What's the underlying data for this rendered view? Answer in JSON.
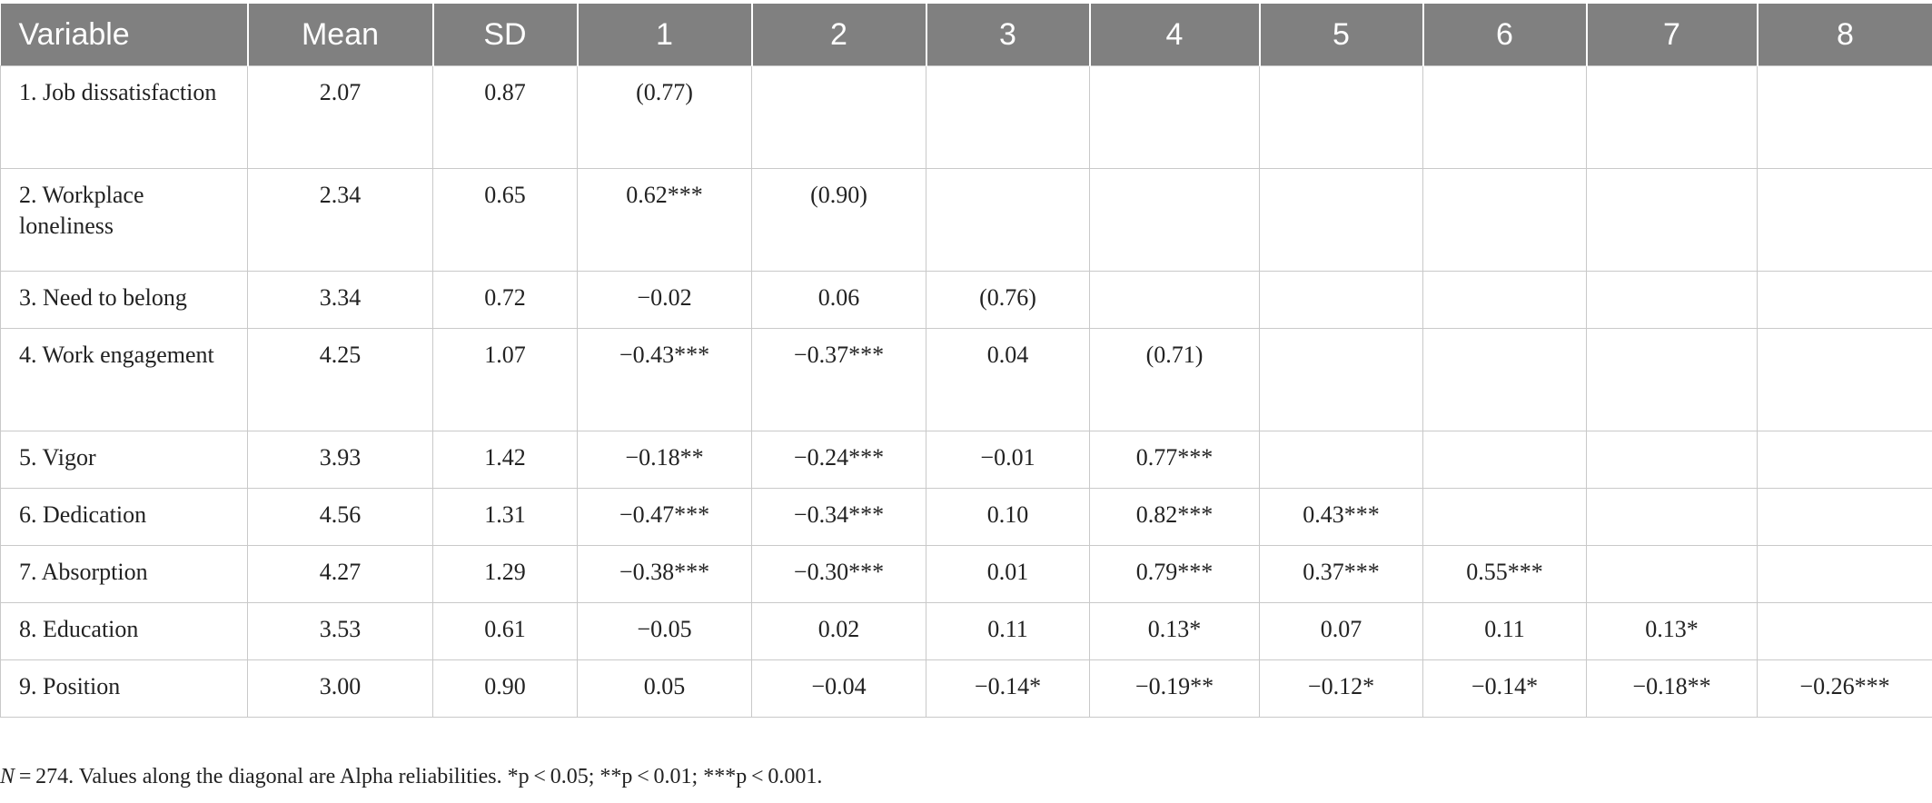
{
  "table": {
    "headers": [
      "Variable",
      "Mean",
      "SD",
      "1",
      "2",
      "3",
      "4",
      "5",
      "6",
      "7",
      "8"
    ],
    "rows": [
      [
        "1. Job dissatisfaction",
        "2.07",
        "0.87",
        "(0.77)",
        "",
        "",
        "",
        "",
        "",
        "",
        ""
      ],
      [
        "2. Workplace loneliness",
        "2.34",
        "0.65",
        "0.62***",
        "(0.90)",
        "",
        "",
        "",
        "",
        "",
        ""
      ],
      [
        "3. Need to belong",
        "3.34",
        "0.72",
        "−0.02",
        "0.06",
        "(0.76)",
        "",
        "",
        "",
        "",
        ""
      ],
      [
        "4. Work engagement",
        "4.25",
        "1.07",
        "−0.43***",
        "−0.37***",
        "0.04",
        "(0.71)",
        "",
        "",
        "",
        ""
      ],
      [
        "5. Vigor",
        "3.93",
        "1.42",
        "−0.18**",
        "−0.24***",
        "−0.01",
        "0.77***",
        "",
        "",
        "",
        ""
      ],
      [
        "6. Dedication",
        "4.56",
        "1.31",
        "−0.47***",
        "−0.34***",
        "0.10",
        "0.82***",
        "0.43***",
        "",
        "",
        ""
      ],
      [
        "7. Absorption",
        "4.27",
        "1.29",
        "−0.38***",
        "−0.30***",
        "0.01",
        "0.79***",
        "0.37***",
        "0.55***",
        "",
        ""
      ],
      [
        "8. Education",
        "3.53",
        "0.61",
        "−0.05",
        "0.02",
        "0.11",
        "0.13*",
        "0.07",
        "0.11",
        "0.13*",
        ""
      ],
      [
        "9. Position",
        "3.00",
        "0.90",
        "0.05",
        "−0.04",
        "−0.14*",
        "−0.19**",
        "−0.12*",
        "−0.14*",
        "−0.18**",
        "−0.26***"
      ]
    ]
  },
  "note": {
    "n_symbol": "N",
    "text": " = 274. Values along the diagonal are Alpha reliabilities. *p < 0.05; **p < 0.01; ***p < 0.001."
  }
}
